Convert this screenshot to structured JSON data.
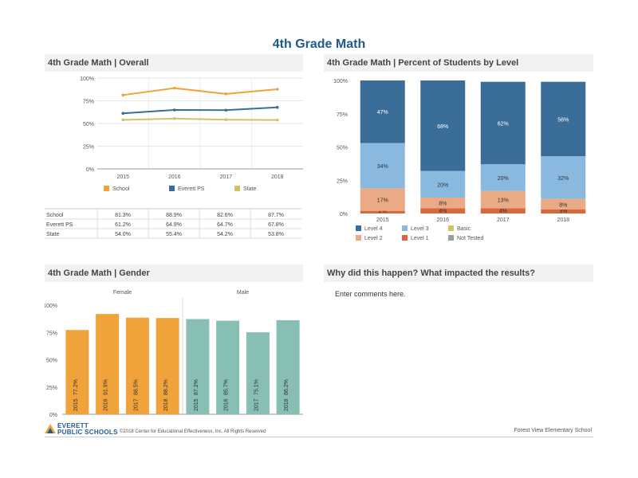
{
  "page": {
    "title": "4th Grade Math",
    "footer_logo_line1": "EVERETT",
    "footer_logo_line2": "PUBLIC SCHOOLS",
    "copyright": "©2018 Center for Educational Effectiveness, Inc. All Rights Reserved",
    "school_name": "Forest View Elementary School",
    "comments_placeholder": "Enter comments here."
  },
  "panels": {
    "overall": "4th Grade Math | Overall",
    "levels": "4th Grade Math | Percent of Students by Level",
    "gender": "4th Grade Math | Gender",
    "why": "Why did this happen? What impacted the results?"
  },
  "colors": {
    "school": "#f0a33b",
    "everett": "#3a6d98",
    "state": "#d4c366",
    "level4": "#3a6d98",
    "level3": "#8ab9e0",
    "level2": "#e9aa85",
    "level1": "#d9683c",
    "female": "#f0a33b",
    "male": "#87bfb4"
  },
  "chart_data": [
    {
      "type": "line",
      "x": [
        "2015",
        "2016",
        "2017",
        "2018"
      ],
      "yticks": [
        "0%",
        "25%",
        "50%",
        "75%",
        "100%"
      ],
      "ylim": [
        0,
        100
      ],
      "series": [
        {
          "name": "School",
          "values": [
            81.3,
            88.9,
            82.6,
            87.7
          ]
        },
        {
          "name": "Everett PS",
          "values": [
            61.2,
            64.9,
            64.7,
            67.8
          ]
        },
        {
          "name": "State",
          "values": [
            54.0,
            55.4,
            54.2,
            53.8
          ]
        }
      ],
      "table": [
        {
          "label": "School",
          "values": [
            "81.3%",
            "88.9%",
            "82.6%",
            "87.7%"
          ]
        },
        {
          "label": "Everett PS",
          "values": [
            "61.2%",
            "64.9%",
            "64.7%",
            "67.8%"
          ]
        },
        {
          "label": "State",
          "values": [
            "54.0%",
            "55.4%",
            "54.2%",
            "53.8%"
          ]
        }
      ]
    },
    {
      "type": "bar",
      "stacked": true,
      "categories": [
        "2015",
        "2016",
        "2017",
        "2018"
      ],
      "yticks": [
        "0%",
        "25%",
        "50%",
        "75%",
        "100%"
      ],
      "ylim": [
        0,
        100
      ],
      "series": [
        {
          "name": "Level 1",
          "values": [
            2,
            4,
            4,
            3
          ],
          "labels": [
            "2%",
            "4%",
            "4%",
            "3%"
          ]
        },
        {
          "name": "Level 2",
          "values": [
            17,
            8,
            13,
            8
          ],
          "labels": [
            "17%",
            "8%",
            "13%",
            "8%"
          ]
        },
        {
          "name": "Level 3",
          "values": [
            34,
            20,
            20,
            32
          ],
          "labels": [
            "34%",
            "20%",
            "20%",
            "32%"
          ]
        },
        {
          "name": "Level 4",
          "values": [
            47,
            68,
            62,
            56
          ],
          "labels": [
            "47%",
            "68%",
            "62%",
            "56%"
          ]
        }
      ],
      "legend": [
        "Level 4",
        "Level 3",
        "Basic",
        "Level 2",
        "Level 1",
        "Not Tested"
      ]
    },
    {
      "type": "bar",
      "groups": [
        "Female",
        "Male"
      ],
      "categories": [
        "2015",
        "2016",
        "2017",
        "2018",
        "2015",
        "2016",
        "2017",
        "2018"
      ],
      "values": [
        77.2,
        91.9,
        88.5,
        88.2,
        87.2,
        85.7,
        75.1,
        86.2
      ],
      "labels": [
        "77.2%",
        "91.9%",
        "88.5%",
        "88.2%",
        "87.2%",
        "85.7%",
        "75.1%",
        "86.2%"
      ],
      "yticks": [
        "0%",
        "25%",
        "50%",
        "75%",
        "100%"
      ],
      "ylim": [
        0,
        100
      ]
    }
  ]
}
